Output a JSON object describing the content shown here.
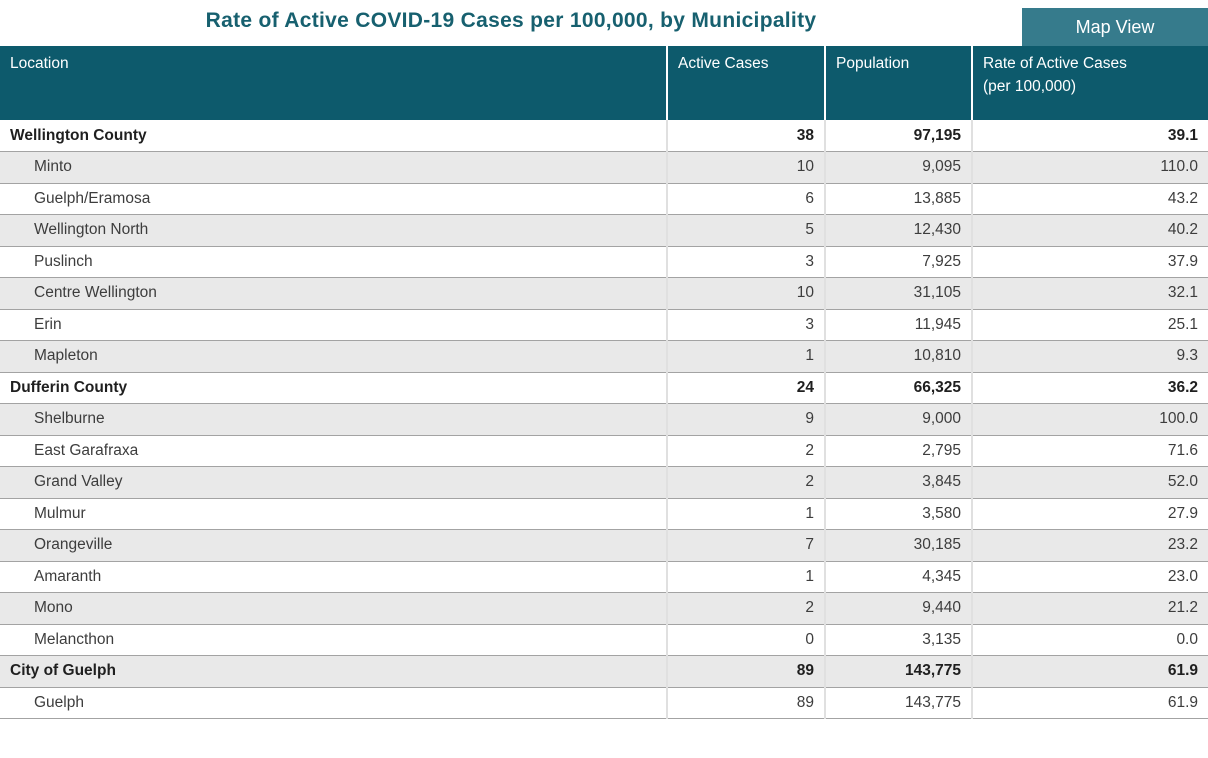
{
  "title": "Rate of Active COVID-19 Cases per 100,000, by Municipality",
  "toolbar": {
    "map_view_label": "Map View"
  },
  "colors": {
    "header_bg": "#0d5a6c",
    "button_bg": "#367b8c",
    "title_text": "#17606f",
    "alt_row_bg": "#e9e9e9",
    "row_divider": "#a3a3a3",
    "col_divider": "#e0e0e0",
    "header_divider": "#ffffff",
    "body_text": "#3d3d3d",
    "bold_text": "#1f1f1f"
  },
  "table": {
    "columns": [
      {
        "label": "Location"
      },
      {
        "label": "Active Cases"
      },
      {
        "label": "Population"
      },
      {
        "label": "Rate of Active Cases",
        "sublabel": "(per 100,000)"
      }
    ],
    "rows": [
      {
        "location": "Wellington County",
        "active_cases": "38",
        "population": "97,195",
        "rate": "39.1",
        "bold": true
      },
      {
        "location": "Minto",
        "active_cases": "10",
        "population": "9,095",
        "rate": "110.0",
        "bold": false
      },
      {
        "location": "Guelph/Eramosa",
        "active_cases": "6",
        "population": "13,885",
        "rate": "43.2",
        "bold": false
      },
      {
        "location": "Wellington North",
        "active_cases": "5",
        "population": "12,430",
        "rate": "40.2",
        "bold": false
      },
      {
        "location": "Puslinch",
        "active_cases": "3",
        "population": "7,925",
        "rate": "37.9",
        "bold": false
      },
      {
        "location": "Centre Wellington",
        "active_cases": "10",
        "population": "31,105",
        "rate": "32.1",
        "bold": false
      },
      {
        "location": "Erin",
        "active_cases": "3",
        "population": "11,945",
        "rate": "25.1",
        "bold": false
      },
      {
        "location": "Mapleton",
        "active_cases": "1",
        "population": "10,810",
        "rate": "9.3",
        "bold": false
      },
      {
        "location": "Dufferin County",
        "active_cases": "24",
        "population": "66,325",
        "rate": "36.2",
        "bold": true
      },
      {
        "location": "Shelburne",
        "active_cases": "9",
        "population": "9,000",
        "rate": "100.0",
        "bold": false
      },
      {
        "location": "East Garafraxa",
        "active_cases": "2",
        "population": "2,795",
        "rate": "71.6",
        "bold": false
      },
      {
        "location": "Grand Valley",
        "active_cases": "2",
        "population": "3,845",
        "rate": "52.0",
        "bold": false
      },
      {
        "location": "Mulmur",
        "active_cases": "1",
        "population": "3,580",
        "rate": "27.9",
        "bold": false
      },
      {
        "location": "Orangeville",
        "active_cases": "7",
        "population": "30,185",
        "rate": "23.2",
        "bold": false
      },
      {
        "location": "Amaranth",
        "active_cases": "1",
        "population": "4,345",
        "rate": "23.0",
        "bold": false
      },
      {
        "location": "Mono",
        "active_cases": "2",
        "population": "9,440",
        "rate": "21.2",
        "bold": false
      },
      {
        "location": "Melancthon",
        "active_cases": "0",
        "population": "3,135",
        "rate": "0.0",
        "bold": false
      },
      {
        "location": "City of Guelph",
        "active_cases": "89",
        "population": "143,775",
        "rate": "61.9",
        "bold": true
      },
      {
        "location": "Guelph",
        "active_cases": "89",
        "population": "143,775",
        "rate": "61.9",
        "bold": false
      }
    ]
  }
}
